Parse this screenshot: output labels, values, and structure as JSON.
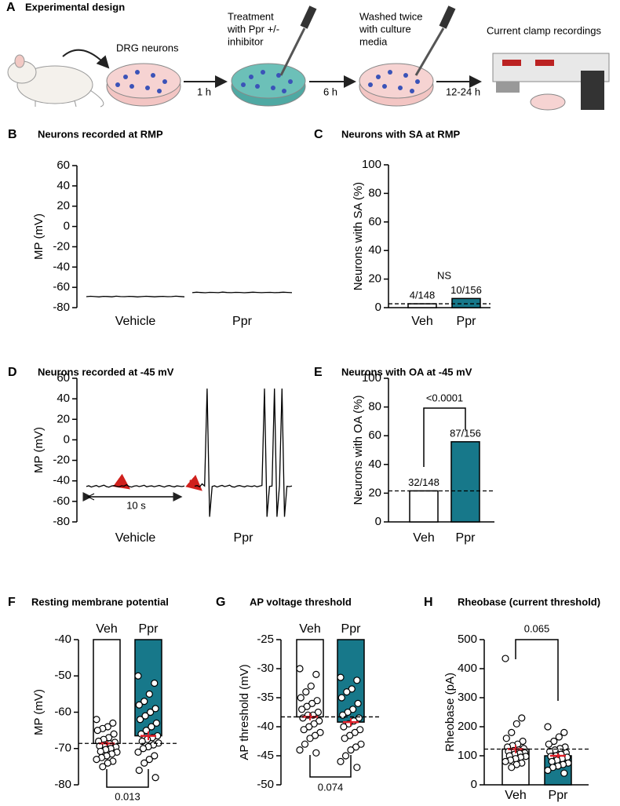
{
  "diagram": {
    "letter": "A",
    "title": "Experimental design",
    "dish1": "DRG neurons",
    "treatment": [
      "Treatment",
      "with Ppr +/-",
      "inhibitor"
    ],
    "washed": [
      "Washed twice",
      "with culture",
      "media"
    ],
    "recording": "Current clamp recordings",
    "steps": [
      "1 h",
      "6 h",
      "12-24 h"
    ]
  },
  "chart_data": [
    {
      "type": "trace",
      "panel": "B",
      "title": "Neurons recorded at RMP",
      "y_label": "MP (mV)",
      "ylim": [
        -80,
        60
      ],
      "yticks": [
        -80,
        -60,
        -40,
        -20,
        0,
        20,
        40,
        60
      ],
      "series": [
        {
          "name": "Vehicle",
          "color": "#000000",
          "values": [
            -69.2,
            -68.8,
            -69.1,
            -69.4,
            -68.9,
            -69.0,
            -69.3,
            -68.7,
            -69.1,
            -69.2,
            -68.9,
            -69.0,
            -69.4,
            -69.1,
            -68.8,
            -69.0,
            -69.3,
            -69.0,
            -68.9,
            -69.2,
            -69.1,
            -68.7,
            -69.0,
            -69.3
          ]
        },
        {
          "name": "Ppr",
          "color": "#000000",
          "values": [
            -65.2,
            -64.8,
            -65.1,
            -65.3,
            -64.9,
            -65.0,
            -65.2,
            -64.7,
            -65.1,
            -65.2,
            -64.9,
            -65.0,
            -65.3,
            -65.1,
            -64.8,
            -65.0,
            -65.2,
            -65.0,
            -64.9,
            -65.2,
            -65.1,
            -64.8,
            -65.0,
            -65.2
          ]
        }
      ]
    },
    {
      "type": "bar",
      "panel": "C",
      "title": "Neurons with SA at RMP",
      "y_label": "Neurons with SA (%)",
      "ylim": [
        0,
        100
      ],
      "yticks": [
        0,
        20,
        40,
        60,
        80,
        100
      ],
      "categories": [
        "Veh",
        "Ppr"
      ],
      "values": [
        2.7,
        6.4
      ],
      "value_labels": [
        "4/148",
        "10/156"
      ],
      "colors": [
        "#ffffff",
        "#17788a"
      ],
      "significance": "NS",
      "bracket": "none"
    },
    {
      "type": "trace",
      "panel": "D",
      "title": "Neurons recorded at -45 mV",
      "y_label": "MP (mV)",
      "ylim": [
        -80,
        60
      ],
      "yticks": [
        -80,
        -60,
        -40,
        -20,
        0,
        20,
        40,
        60
      ],
      "scale_bar": "10 s",
      "series": [
        {
          "name": "Vehicle",
          "color": "#000000",
          "values": [
            -45.5,
            -44.8,
            -46.0,
            -45.2,
            -44.5,
            -45.8,
            -45.0,
            -44.2,
            -45.6,
            -46.1,
            -45.0,
            -44.6,
            -45.4,
            -45.9,
            -44.8,
            -45.2,
            -43.8,
            -45.5,
            -46.0,
            -45.1,
            -44.7,
            -45.6,
            -45.0,
            -44.3,
            -45.8,
            -45.2,
            -44.9,
            -45.7,
            -45.1,
            -44.5,
            -45.3,
            -46.0,
            -45.0,
            -44.6,
            -45.4,
            -45.9,
            -44.9,
            -45.2,
            -45.6,
            -45.0
          ]
        },
        {
          "name": "Ppr",
          "color": "#000000",
          "values": [
            -45.2,
            -44.6,
            -45.8,
            -43.0,
            -45.0,
            50,
            -75,
            -45.5,
            -44.8,
            -46.0,
            -45.1,
            -44.4,
            -45.6,
            -45.0,
            -44.2,
            -45.7,
            -46.1,
            -45.0,
            -44.6,
            -45.3,
            -45.9,
            -44.8,
            -45.2,
            -45.5,
            -44.7,
            -45.8,
            -45.1,
            -44.5,
            50,
            -75,
            -45.4,
            -45.0,
            50,
            -75,
            -44.8,
            50,
            -75,
            -45.3,
            -45.6,
            -45.0
          ]
        }
      ]
    },
    {
      "type": "bar",
      "panel": "E",
      "title": "Neurons with OA at -45 mV",
      "y_label": "Neurons with OA (%)",
      "ylim": [
        0,
        100
      ],
      "yticks": [
        0,
        20,
        40,
        60,
        80,
        100
      ],
      "categories": [
        "Veh",
        "Ppr"
      ],
      "values": [
        21.6,
        55.8
      ],
      "value_labels": [
        "32/148",
        "87/156"
      ],
      "colors": [
        "#ffffff",
        "#17788a"
      ],
      "significance": "<0.0001",
      "bracket": "above"
    },
    {
      "type": "bar",
      "panel": "F",
      "title": "Resting membrane potential",
      "y_label": "MP (mV)",
      "ylim": [
        -80,
        -40
      ],
      "yticks": [
        -80,
        -70,
        -60,
        -50,
        -40
      ],
      "categories": [
        "Veh",
        "Ppr"
      ],
      "values": [
        -68.6,
        -66.5
      ],
      "errors": [
        0.6,
        1.2
      ],
      "colors": [
        "#ffffff",
        "#17788a"
      ],
      "significance": "0.013",
      "bracket": "below",
      "points": [
        [
          -62,
          -63,
          -64,
          -64.5,
          -65,
          -66,
          -67,
          -67.5,
          -68,
          -68.3,
          -68.7,
          -69,
          -69.3,
          -69.6,
          -70,
          -70.3,
          -70.8,
          -71,
          -71.5,
          -72,
          -72.5,
          -73,
          -73.5,
          -74,
          -75
        ],
        [
          -50,
          -52,
          -55,
          -57,
          -58,
          -59,
          -60,
          -61,
          -62,
          -63,
          -64,
          -65,
          -66,
          -66.5,
          -67,
          -67.5,
          -68,
          -68.5,
          -69,
          -69.5,
          -70,
          -71,
          -72,
          -73,
          -74,
          -76,
          -78
        ]
      ]
    },
    {
      "type": "bar",
      "panel": "G",
      "title": "AP voltage threshold",
      "y_label": "AP threshold (mV)",
      "ylim": [
        -50,
        -25
      ],
      "yticks": [
        -50,
        -45,
        -40,
        -35,
        -30,
        -25
      ],
      "categories": [
        "Veh",
        "Ppr"
      ],
      "values": [
        -38.3,
        -39.2
      ],
      "errors": [
        0.6,
        0.7
      ],
      "colors": [
        "#ffffff",
        "#17788a"
      ],
      "significance": "0.074",
      "bracket": "below",
      "points": [
        [
          -30,
          -31,
          -33,
          -34,
          -35,
          -35.5,
          -36,
          -36.5,
          -37,
          -37.5,
          -38,
          -38,
          -38.5,
          -39,
          -39.5,
          -40,
          -40.5,
          -41,
          -41.5,
          -42,
          -43,
          -44,
          -44.5
        ],
        [
          -31.5,
          -32,
          -33.5,
          -34,
          -35,
          -36,
          -37,
          -37.5,
          -38,
          -38.5,
          -39,
          -39.5,
          -40,
          -40.5,
          -41,
          -41.5,
          -42,
          -43,
          -43.5,
          -44,
          -45,
          -46,
          -47
        ]
      ]
    },
    {
      "type": "bar",
      "panel": "H",
      "title": "Rheobase (current threshold)",
      "y_label": "Rheobase (pA)",
      "ylim": [
        0,
        500
      ],
      "yticks": [
        0,
        100,
        200,
        300,
        400,
        500
      ],
      "categories": [
        "Veh",
        "Ppr"
      ],
      "values": [
        123,
        100
      ],
      "errors": [
        14,
        8
      ],
      "colors": [
        "#ffffff",
        "#17788a"
      ],
      "significance": "0.065",
      "bracket": "above",
      "points": [
        [
          435,
          230,
          210,
          180,
          160,
          150,
          140,
          135,
          130,
          125,
          120,
          118,
          115,
          110,
          108,
          105,
          100,
          98,
          95,
          90,
          85,
          80,
          75,
          70,
          60
        ],
        [
          200,
          180,
          165,
          150,
          140,
          130,
          125,
          120,
          115,
          110,
          105,
          100,
          98,
          95,
          90,
          85,
          80,
          75,
          70,
          65,
          60,
          50,
          40
        ]
      ]
    }
  ]
}
